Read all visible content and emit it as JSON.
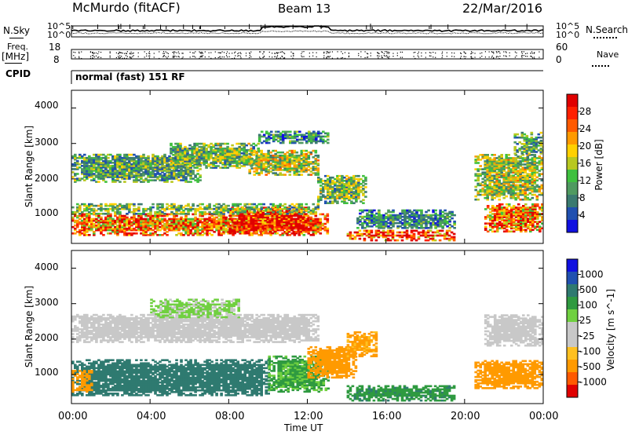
{
  "header": {
    "station": "McMurdo (fitACF)",
    "beam": "Beam 13",
    "date": "22/Mar/2016"
  },
  "top_panels": {
    "nsky_label": "N.Sky",
    "nsearch_label": "N.Search",
    "noise_ticks_left": [
      "10^5",
      "10^0"
    ],
    "noise_ticks_right": [
      "10^5",
      "10^0"
    ],
    "freq_label": "Freq.",
    "freq_unit": "[MHz]",
    "freq_ticks": [
      "18",
      "8"
    ],
    "nave_label": "Nave",
    "nave_ticks": [
      "60",
      "0"
    ],
    "cpid_label": "CPID",
    "cpid_text": "normal (fast) 151 RF"
  },
  "colors": {
    "power_scale": [
      "#1010e0",
      "#2050b0",
      "#3a7a70",
      "#4f9a60",
      "#3fc03f",
      "#b8c820",
      "#ffd000",
      "#ff9a00",
      "#ff5a00",
      "#ff2000",
      "#e00000"
    ],
    "velocity_scale": [
      "#e00000",
      "#ff5a00",
      "#ff9a00",
      "#ffc020",
      "#c8c8c8",
      "#c8c8c8",
      "#70d040",
      "#2f9a40",
      "#2f7a70",
      "#2050b0",
      "#1010e0"
    ]
  },
  "chart_data": [
    {
      "type": "heatmap",
      "title": "Power",
      "xlabel": "Time UT",
      "ylabel": "Slant Range [km]",
      "x_ticks": [
        "00:00",
        "04:00",
        "08:00",
        "12:00",
        "16:00",
        "20:00",
        "00:00"
      ],
      "x_range_hours": [
        0,
        24
      ],
      "y_ticks": [
        "4000",
        "3000",
        "2000",
        "1000"
      ],
      "ylim_km": [
        180,
        4500
      ],
      "colorbar": {
        "label": "Power [dB]",
        "ticks": [
          "28",
          "24",
          "20",
          "16",
          "12",
          "8",
          "4"
        ],
        "range": [
          0,
          30
        ]
      },
      "regions": [
        {
          "t0": 0.0,
          "t1": 13.0,
          "r0": 400,
          "r1": 1000,
          "value": 22
        },
        {
          "t0": 8.0,
          "t1": 12.0,
          "r0": 450,
          "r1": 1200,
          "value": 28
        },
        {
          "t0": 0.0,
          "t1": 12.5,
          "r0": 1000,
          "r1": 1300,
          "value": 12
        },
        {
          "t0": 0.0,
          "t1": 6.5,
          "r0": 1900,
          "r1": 2700,
          "value": 10
        },
        {
          "t0": 5.0,
          "t1": 9.5,
          "r0": 2300,
          "r1": 3000,
          "value": 12
        },
        {
          "t0": 9.0,
          "t1": 12.5,
          "r0": 2100,
          "r1": 2800,
          "value": 14
        },
        {
          "t0": 12.5,
          "t1": 15.0,
          "r0": 1300,
          "r1": 2100,
          "value": 12
        },
        {
          "t0": 14.0,
          "t1": 19.5,
          "r0": 250,
          "r1": 550,
          "value": 26
        },
        {
          "t0": 14.5,
          "t1": 19.5,
          "r0": 600,
          "r1": 1100,
          "value": 8
        },
        {
          "t0": 21.0,
          "t1": 24.0,
          "r0": 500,
          "r1": 1300,
          "value": 22
        },
        {
          "t0": 20.5,
          "t1": 24.0,
          "r0": 1400,
          "r1": 2700,
          "value": 14
        },
        {
          "t0": 22.5,
          "t1": 24.0,
          "r0": 2700,
          "r1": 3300,
          "value": 10
        },
        {
          "t0": 9.5,
          "t1": 13.0,
          "r0": 3000,
          "r1": 3350,
          "value": 8
        }
      ]
    },
    {
      "type": "heatmap",
      "title": "Velocity",
      "xlabel": "Time UT",
      "ylabel": "Slant Range [km]",
      "x_ticks": [
        "00:00",
        "04:00",
        "08:00",
        "12:00",
        "16:00",
        "20:00",
        "00:00"
      ],
      "x_range_hours": [
        0,
        24
      ],
      "y_ticks": [
        "4000",
        "3000",
        "2000",
        "1000"
      ],
      "ylim_km": [
        180,
        4500
      ],
      "colorbar": {
        "label": "Velocity [m s^-1]",
        "ticks": [
          "1000",
          "500",
          "100",
          "25",
          "-25",
          "-100",
          "-500",
          "-1000"
        ]
      },
      "regions": [
        {
          "t0": 0.0,
          "t1": 10.0,
          "r0": 400,
          "r1": 1400,
          "value": 150
        },
        {
          "t0": 10.0,
          "t1": 13.0,
          "r0": 500,
          "r1": 1500,
          "value": 60
        },
        {
          "t0": 12.0,
          "t1": 14.5,
          "r0": 900,
          "r1": 1800,
          "value": -150
        },
        {
          "t0": 14.0,
          "t1": 15.5,
          "r0": 1500,
          "r1": 2200,
          "value": -120
        },
        {
          "t0": 0.0,
          "t1": 12.5,
          "r0": 1900,
          "r1": 2700,
          "value": 0
        },
        {
          "t0": 4.0,
          "t1": 8.5,
          "r0": 2600,
          "r1": 3100,
          "value": 30
        },
        {
          "t0": 14.0,
          "t1": 19.5,
          "r0": 250,
          "r1": 700,
          "value": 80
        },
        {
          "t0": 20.5,
          "t1": 24.0,
          "r0": 600,
          "r1": 1400,
          "value": -200
        },
        {
          "t0": 21.0,
          "t1": 24.0,
          "r0": 1800,
          "r1": 2700,
          "value": 0
        },
        {
          "t0": 0.0,
          "t1": 1.0,
          "r0": 500,
          "r1": 1100,
          "value": -150
        }
      ]
    }
  ]
}
